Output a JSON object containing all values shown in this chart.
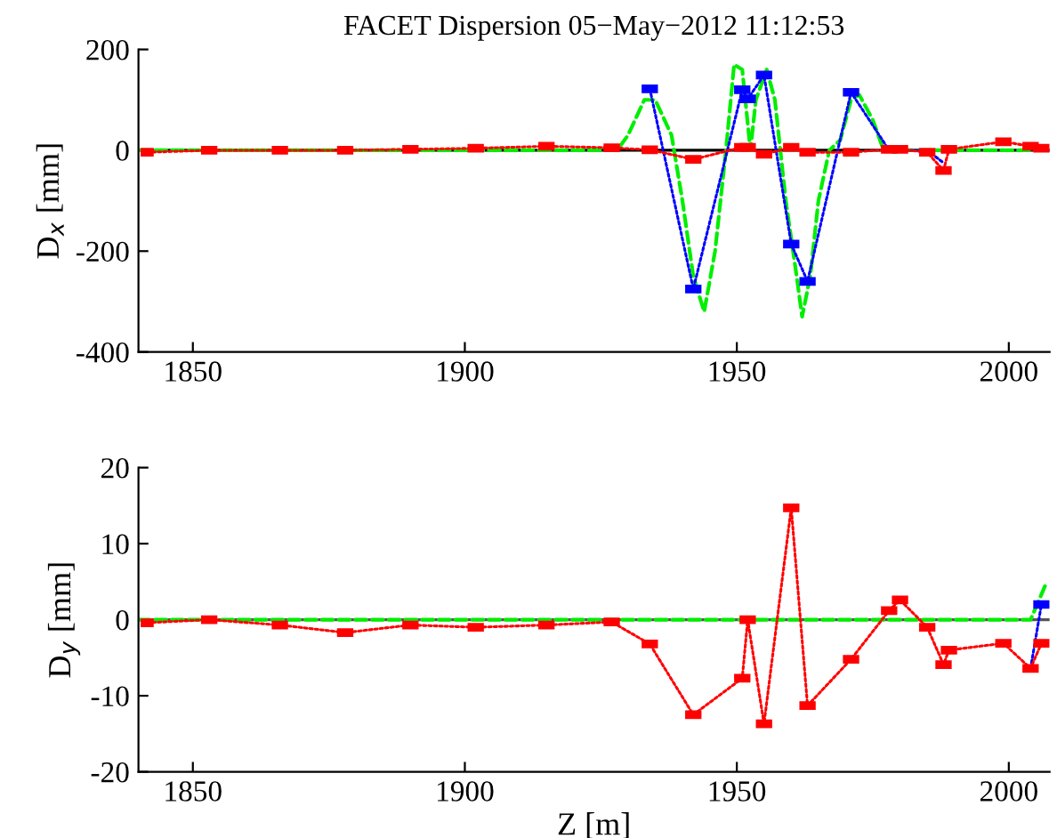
{
  "chart_data": [
    {
      "type": "line",
      "title": "FACET Dispersion 05−May−2012 11:12:53",
      "ylabel": "D$_{x}$ [mm]",
      "xlim": [
        1840,
        2007.5
      ],
      "xticks": [
        1850,
        1900,
        1950,
        2000
      ],
      "ylim": [
        -400,
        200
      ],
      "yticks": [
        -400,
        -200,
        0,
        200
      ],
      "grid": false,
      "legend": false,
      "ref_lines": [
        {
          "axis": "y",
          "value": 0,
          "color": "#000000",
          "line_style": "solid"
        }
      ],
      "series": [
        {
          "color": "#00ee00",
          "marker": "none",
          "line_style": "dashed",
          "x": [
            1840,
            1928,
            1930,
            1933,
            1935,
            1938,
            1940,
            1942,
            1944,
            1946,
            1948,
            1949.5,
            1951,
            1952.5,
            1953.5,
            1955.5,
            1957,
            1959,
            1961,
            1962,
            1963.5,
            1965,
            1967,
            1969,
            1971,
            1972.5,
            1975,
            1977,
            2007.5
          ],
          "values": [
            0,
            0,
            30,
            100,
            100,
            30,
            -100,
            -250,
            -320,
            -200,
            0,
            170,
            160,
            0,
            100,
            160,
            100,
            -100,
            -250,
            -330,
            -250,
            -100,
            0,
            20,
            100,
            110,
            60,
            0,
            0
          ]
        },
        {
          "color": "#0000ff",
          "line_style": "dotted",
          "x": [
            1934,
            1942,
            1951,
            1952,
            1955,
            1960,
            1963,
            1971,
            1978,
            1980,
            1985,
            1988
          ],
          "values": [
            122,
            -275,
            120,
            102,
            149,
            -186,
            -260,
            115,
            0,
            0,
            0,
            -25
          ],
          "xerrors": [
            1.5,
            1.5,
            1.5,
            1.5,
            1.5,
            1.5,
            1.5,
            1.5,
            null,
            null,
            null,
            null
          ]
        },
        {
          "color": "#ff0000",
          "line_style": "dotted",
          "x": [
            1841.6,
            1853,
            1866,
            1878,
            1890,
            1902,
            1915,
            1927,
            1934,
            1942,
            1951,
            1952,
            1955,
            1960,
            1963,
            1971,
            1978,
            1980,
            1985,
            1988,
            1989,
            1999,
            2004,
            2006
          ],
          "values": [
            -4,
            0,
            0,
            0,
            2,
            4,
            8,
            5,
            1,
            -18,
            6,
            6,
            -8,
            6,
            -4,
            -4,
            2,
            2,
            -4,
            -40,
            2,
            17,
            8,
            4
          ],
          "xerrors": [
            1.2,
            1.5,
            1.5,
            1.5,
            1.5,
            1.5,
            1.5,
            1.5,
            1.5,
            1.5,
            1.5,
            1.5,
            1.5,
            1.5,
            1.5,
            1.5,
            1.5,
            1.5,
            1.5,
            1.5,
            1.5,
            1.5,
            1.5,
            1.5
          ]
        }
      ]
    },
    {
      "type": "line",
      "xlabel": "Z [m]",
      "ylabel": "D$_{y}$ [mm]",
      "xlim": [
        1840,
        2007.5
      ],
      "xticks": [
        1850,
        1900,
        1950,
        2000
      ],
      "ylim": [
        -20,
        20
      ],
      "yticks": [
        -20,
        -10,
        0,
        10,
        20
      ],
      "grid": false,
      "legend": false,
      "ref_lines": [
        {
          "axis": "y",
          "value": 0,
          "color": "#555555",
          "line_style": "solid"
        }
      ],
      "series": [
        {
          "color": "#00ee00",
          "marker": "none",
          "line_style": "dashed",
          "x": [
            1840,
            2004,
            2005.5,
            2007
          ],
          "values": [
            0,
            0,
            2.5,
            5
          ]
        },
        {
          "color": "#0000ff",
          "line_style": "dotted",
          "x": [
            2004,
            2006
          ],
          "values": [
            -6.4,
            2
          ],
          "xerrors": [
            null,
            1.5
          ]
        },
        {
          "color": "#ff0000",
          "line_style": "dotted",
          "x": [
            1841.6,
            1853,
            1866,
            1878,
            1890,
            1902,
            1915,
            1927,
            1934,
            1942,
            1951,
            1952,
            1955,
            1960,
            1963,
            1971,
            1978,
            1980,
            1985,
            1988,
            1989,
            1999,
            2004,
            2006
          ],
          "values": [
            -0.4,
            0,
            -0.7,
            -1.7,
            -0.7,
            -1,
            -0.7,
            -0.3,
            -3.2,
            -12.5,
            -7.7,
            0,
            -13.7,
            14.7,
            -11.3,
            -5.2,
            1.2,
            2.6,
            -1,
            -5.9,
            -4,
            -3.1,
            -6.4,
            -3.1
          ],
          "xerrors": [
            1.2,
            1.5,
            1.5,
            1.5,
            1.5,
            1.5,
            1.5,
            1.5,
            1.5,
            1.5,
            1.5,
            1.5,
            1.5,
            1.5,
            1.5,
            1.5,
            1.5,
            1.5,
            1.5,
            1.5,
            1.5,
            1.5,
            1.5,
            1.5
          ]
        }
      ]
    }
  ]
}
